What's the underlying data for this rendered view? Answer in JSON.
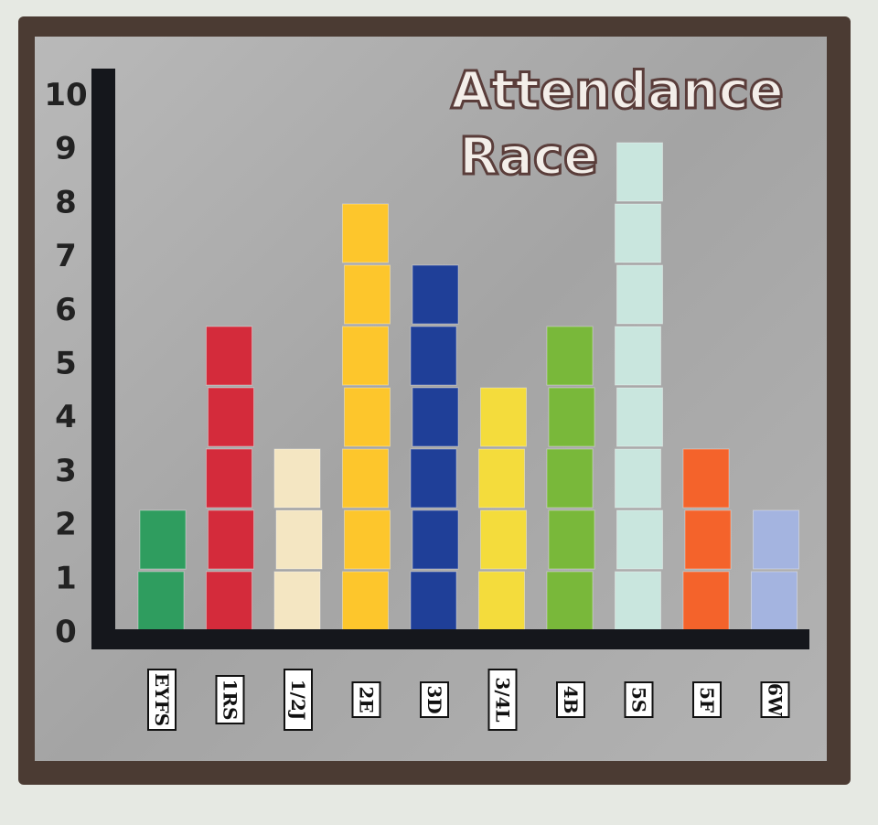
{
  "chart_data": {
    "type": "bar",
    "title": "Attendance Race",
    "title_lines": [
      "Attendance",
      "Race"
    ],
    "categories": [
      "EYFS",
      "1RS",
      "1/2J",
      "2E",
      "3D",
      "3/4L",
      "4B",
      "5S",
      "5F",
      "6W"
    ],
    "values": [
      2,
      5,
      3,
      7,
      6,
      4,
      5,
      8,
      3,
      2
    ],
    "colors": [
      "#2f9d5f",
      "#d42b3b",
      "#f4e6c2",
      "#fdc62c",
      "#1f3f98",
      "#f4dc3c",
      "#79b83a",
      "#c9e6de",
      "#f4632b",
      "#a4b4e0"
    ],
    "yticks": [
      0,
      1,
      2,
      3,
      4,
      5,
      6,
      7,
      8,
      9,
      10
    ],
    "ylim": [
      0,
      10
    ],
    "xlabel": "",
    "ylabel": "",
    "grid": false,
    "legend": "none"
  }
}
